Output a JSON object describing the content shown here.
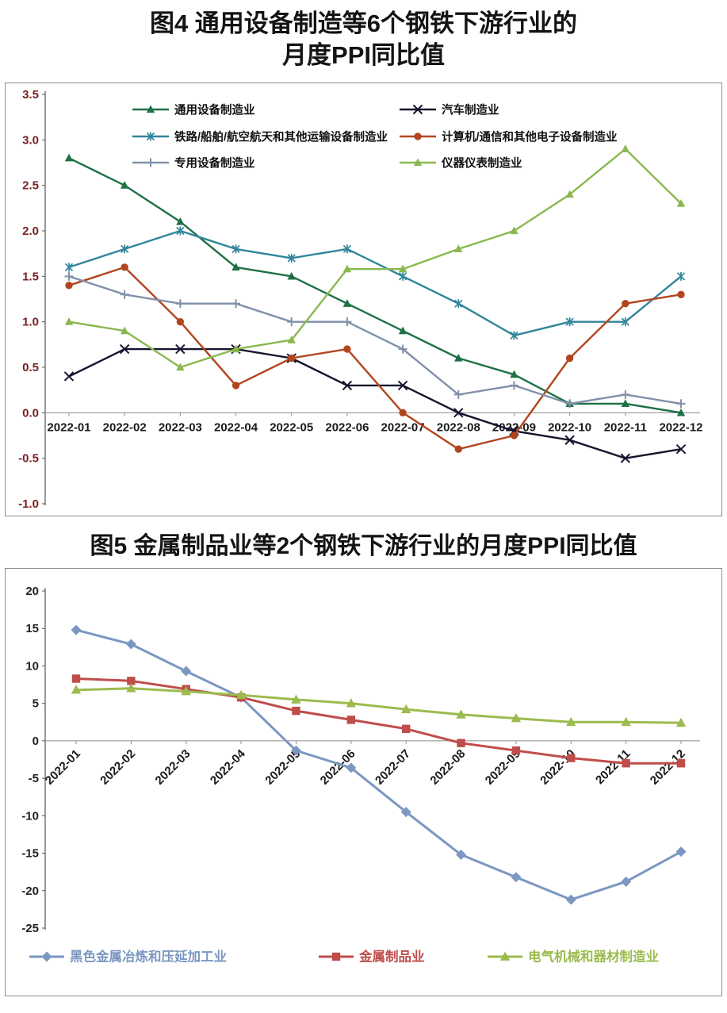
{
  "titles": {
    "fig4_line1": "图4 通用设备制造等6个钢铁下游行业的",
    "fig4_line2": "月度PPI同比值",
    "fig5": "图5 金属制品业等2个钢铁下游行业的月度PPI同比值"
  },
  "chart_data": [
    {
      "type": "line",
      "title": "图4 通用设备制造等6个钢铁下游行业的月度PPI同比值",
      "x": [
        "2022-01",
        "2022-02",
        "2022-03",
        "2022-04",
        "2022-05",
        "2022-06",
        "2022-07",
        "2022-08",
        "2022-09",
        "2022-10",
        "2022-11",
        "2022-12"
      ],
      "ylim": [
        -1.0,
        3.5
      ],
      "ytick_step": 0.5,
      "yticks": [
        "3.5",
        "3.0",
        "2.5",
        "2.0",
        "1.5",
        "1.0",
        "0.5",
        "0.0",
        "-0.5",
        "-1.0"
      ],
      "decimals": 1,
      "grid": false,
      "legend_position": "top",
      "ytick_color": "#7a1f1f",
      "series": [
        {
          "name": "通用设备制造业",
          "color": "#1e7145",
          "marker": "triangle",
          "values": [
            2.8,
            2.5,
            2.1,
            1.6,
            1.5,
            1.2,
            0.9,
            0.6,
            0.42,
            0.1,
            0.1,
            0.0
          ]
        },
        {
          "name": "汽车制造业",
          "color": "#16142e",
          "marker": "x",
          "values": [
            0.4,
            0.7,
            0.7,
            0.7,
            0.6,
            0.3,
            0.3,
            0.0,
            -0.2,
            -0.3,
            -0.5,
            -0.4
          ]
        },
        {
          "name": "铁路/船舶/航空航天和其他运输设备制造业",
          "color": "#31859c",
          "marker": "asterisk",
          "values": [
            1.6,
            1.8,
            2.0,
            1.8,
            1.7,
            1.8,
            1.5,
            1.2,
            0.85,
            1.0,
            1.0,
            1.5
          ]
        },
        {
          "name": "计算机/通信和其他电子设备制造业",
          "color": "#b2451e",
          "marker": "circle",
          "values": [
            1.4,
            1.6,
            1.0,
            0.3,
            0.6,
            0.7,
            0.0,
            -0.4,
            -0.25,
            0.6,
            1.2,
            1.3
          ]
        },
        {
          "name": "专用设备制造业",
          "color": "#8191a9",
          "marker": "plus",
          "values": [
            1.5,
            1.3,
            1.2,
            1.2,
            1.0,
            1.0,
            0.7,
            0.2,
            0.3,
            0.1,
            0.2,
            0.1
          ]
        },
        {
          "name": "仪器仪表制造业",
          "color": "#8ab84f",
          "marker": "triangle",
          "values": [
            1.0,
            0.9,
            0.5,
            0.7,
            0.8,
            1.58,
            1.58,
            1.8,
            2.0,
            2.4,
            2.9,
            2.3
          ]
        }
      ]
    },
    {
      "type": "line",
      "title": "图5 金属制品业等2个钢铁下游行业的月度PPI同比值",
      "x": [
        "2022-01",
        "2022-02",
        "2022-03",
        "2022-04",
        "2022-05",
        "2022-06",
        "2022-07",
        "2022-08",
        "2022-09",
        "2022-10",
        "2022-11",
        "2022-12"
      ],
      "ylim": [
        -25,
        20
      ],
      "ytick_step": 5,
      "yticks": [
        "20",
        "15",
        "10",
        "5",
        "0",
        "-5",
        "-10",
        "-15",
        "-20",
        "-25"
      ],
      "decimals": 0,
      "grid": false,
      "legend_position": "bottom",
      "ytick_color": "#222222",
      "series": [
        {
          "name": "黑色金属冶炼和压延加工业",
          "color": "#7b97c2",
          "marker": "diamond",
          "values": [
            14.8,
            12.9,
            9.3,
            5.8,
            -1.3,
            -3.6,
            -9.5,
            -15.2,
            -18.2,
            -21.2,
            -18.8,
            -14.8
          ]
        },
        {
          "name": "金属制品业",
          "color": "#bf4d4a",
          "marker": "square",
          "values": [
            8.3,
            8.0,
            6.9,
            5.8,
            4.0,
            2.8,
            1.6,
            -0.3,
            -1.3,
            -2.3,
            -3.0,
            -3.0
          ]
        },
        {
          "name": "电气机械和器材制造业",
          "color": "#9cbb4e",
          "marker": "triangle",
          "values": [
            6.8,
            7.0,
            6.6,
            6.1,
            5.5,
            5.0,
            4.2,
            3.5,
            3.0,
            2.5,
            2.5,
            2.4
          ]
        }
      ]
    }
  ]
}
